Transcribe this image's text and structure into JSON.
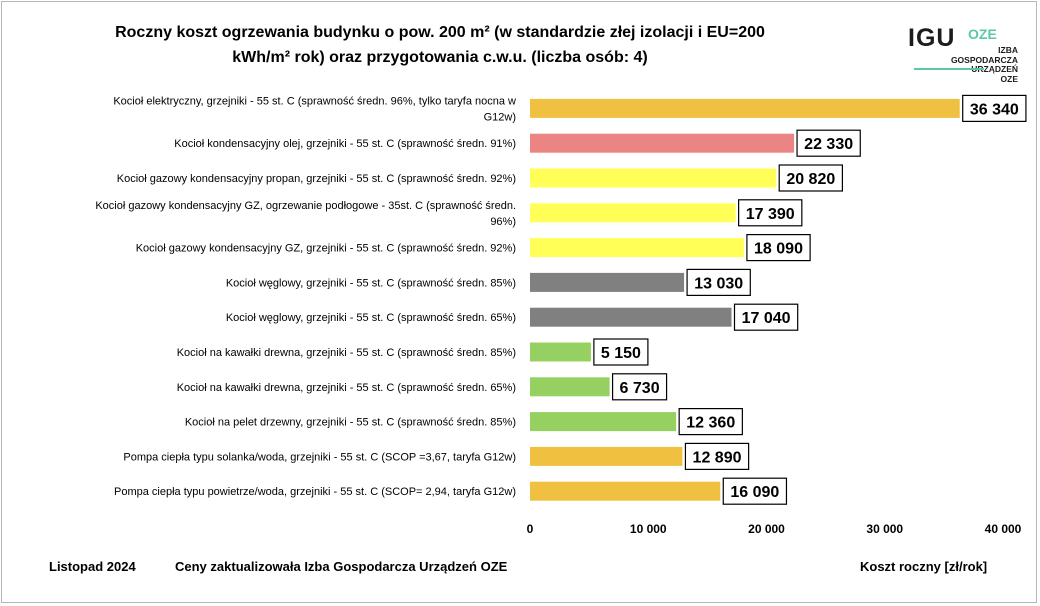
{
  "title_line1": "Roczny koszt ogrzewania budynku o pow. 200 m² (w standardzie złej izolacji i EU=200",
  "title_line2": "kWh/m² rok) oraz przygotowania c.w.u. (liczba osób: 4)",
  "logo": {
    "igu": "IGU",
    "oze": "OZE",
    "sub": [
      "IZBA",
      "GOSPODARCZA",
      "URZĄDZEŃ",
      "OZE"
    ]
  },
  "footer": {
    "date": "Listopad 2024",
    "note": "Ceny zaktualizowała Izba Gospodarcza Urządzeń OZE",
    "unit": "Koszt roczny [zł/rok]"
  },
  "colors": {
    "orange": "#f0c040",
    "red": "#ea8583",
    "yellow": "#ffff58",
    "gray": "#808080",
    "green": "#96d060"
  },
  "chart_data": {
    "type": "bar",
    "orientation": "horizontal",
    "xlim": [
      0,
      40000
    ],
    "xticks": [
      "0",
      "10 000",
      "20 000",
      "30 000",
      "40 000"
    ],
    "grid": false,
    "categories": [
      [
        "Kocioł  elektryczny,  grzejniki - 55 st. C  (sprawność średn. 96%, tylko taryfa nocna w",
        "G12w)"
      ],
      [
        "Kocioł  kondensacyjny olej,  grzejniki - 55 st. C  (sprawność średn. 91%)"
      ],
      [
        "Kocioł gazowy kondensacyjny propan, grzejniki - 55 st. C  (sprawność średn. 92%)"
      ],
      [
        "Kocioł gazowy kondensacyjny GZ, ogrzewanie podłogowe - 35st. C   (sprawność średn.",
        "96%)"
      ],
      [
        "Kocioł gazowy kondensacyjny GZ, grzejniki - 55 st. C   (sprawność średn. 92%)"
      ],
      [
        "Kocioł węglowy,  grzejniki - 55 st. C   (sprawność średn. 85%)"
      ],
      [
        "Kocioł węglowy,  grzejniki - 55 st. C  (sprawność średn. 65%)"
      ],
      [
        "Kocioł na kawałki drewna, grzejniki - 55 st. C (sprawność średn. 85%)"
      ],
      [
        "Kocioł na kawałki drewna, grzejniki - 55 st. C  (sprawność średn. 65%)"
      ],
      [
        "Kocioł na pelet drzewny, grzejniki - 55 st. C (sprawność średn. 85%)"
      ],
      [
        "Pompa ciepła typu solanka/woda, grzejniki - 55 st. C (SCOP =3,67, taryfa G12w)"
      ],
      [
        "Pompa ciepła typu powietrze/woda, grzejniki - 55 st. C (SCOP= 2,94, taryfa G12w)"
      ]
    ],
    "values": [
      36340,
      22330,
      20820,
      17390,
      18090,
      13030,
      17040,
      5150,
      6730,
      12360,
      12890,
      16090
    ],
    "value_labels": [
      "36 340",
      "22 330",
      "20 820",
      "17 390",
      "18 090",
      "13 030",
      "17 040",
      "5 150",
      "6 730",
      "12 360",
      "12 890",
      "16 090"
    ],
    "bar_colors": [
      "orange",
      "red",
      "yellow",
      "yellow",
      "yellow",
      "gray",
      "gray",
      "green",
      "green",
      "green",
      "orange",
      "orange"
    ]
  }
}
